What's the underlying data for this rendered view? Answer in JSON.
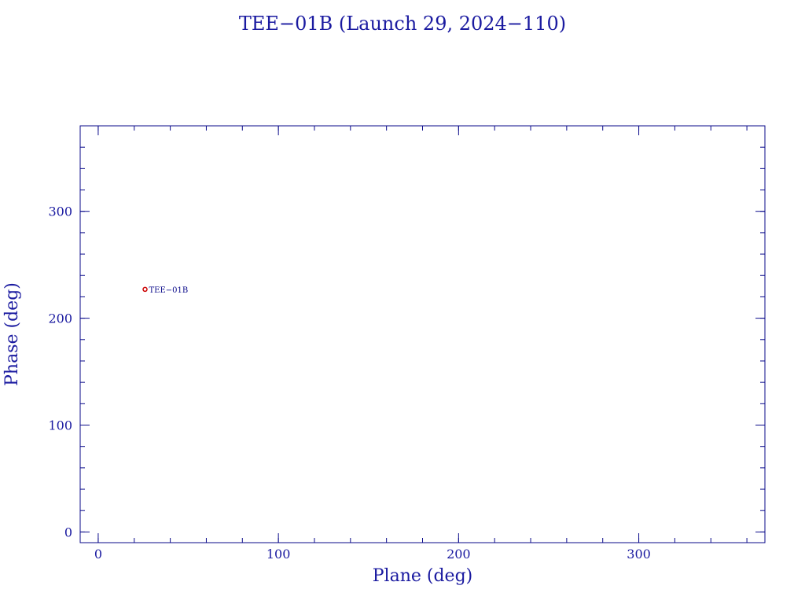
{
  "chart_data": {
    "type": "scatter",
    "title": "TEE−01B (Launch 29, 2024−110)",
    "xlabel": "Plane (deg)",
    "ylabel": "Phase (deg)",
    "xlim": [
      -10,
      370
    ],
    "ylim": [
      -10,
      380
    ],
    "xticks": [
      0,
      100,
      200,
      300
    ],
    "yticks": [
      0,
      100,
      200,
      300
    ],
    "x_minor_step": 20,
    "y_minor_step": 20,
    "grid": false,
    "points": [
      {
        "x": 26,
        "y": 227,
        "label": "TEE−01B"
      }
    ]
  },
  "colors": {
    "axis": "#0a0a8a",
    "text": "#1a1aa0",
    "marker": "#cc0000",
    "background": "#ffffff"
  }
}
